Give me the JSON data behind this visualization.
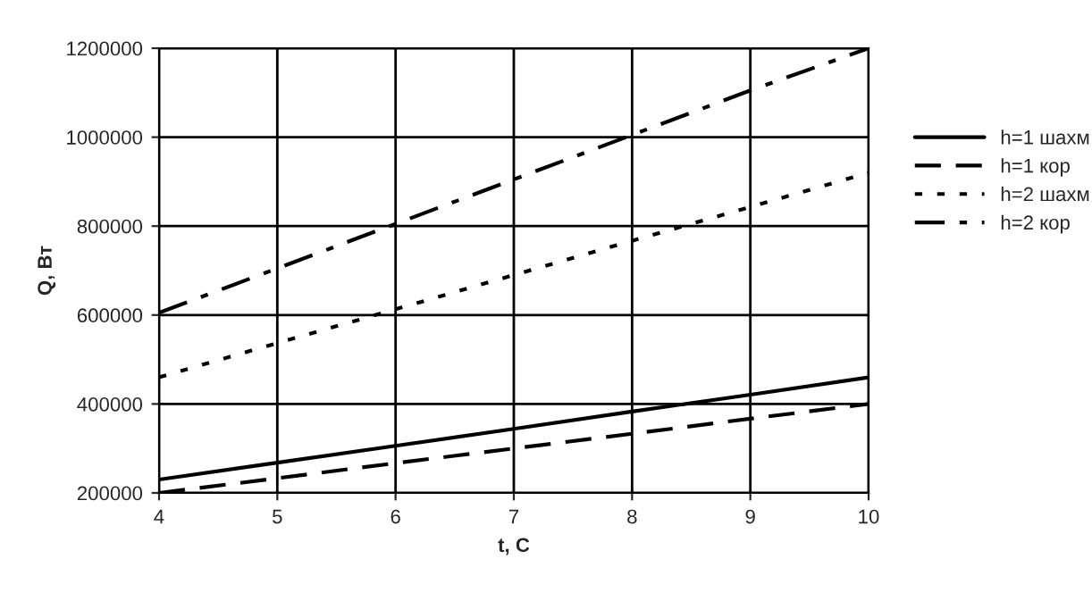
{
  "chart_data": {
    "type": "line",
    "xlabel": "t, C",
    "ylabel": "Q, Вт",
    "x": [
      4,
      5,
      6,
      7,
      8,
      9,
      10
    ],
    "series": [
      {
        "name": "h=1 шахм",
        "color": "#000000",
        "line_style": "solid",
        "values": [
          230000,
          268000,
          306000,
          344000,
          383000,
          421000,
          460000
        ]
      },
      {
        "name": "h=1 кор",
        "color": "#000000",
        "line_style": "dashed",
        "values": [
          200000,
          233000,
          267000,
          300000,
          333000,
          367000,
          400000
        ]
      },
      {
        "name": "h=2 шахм",
        "color": "#000000",
        "line_style": "dotted",
        "values": [
          460000,
          537000,
          613000,
          690000,
          767000,
          843000,
          920000
        ]
      },
      {
        "name": "h=2 кор",
        "color": "#000000",
        "line_style": "dashdot",
        "values": [
          605000,
          705000,
          805000,
          905000,
          1005000,
          1105000,
          1200000
        ]
      }
    ],
    "xlim": [
      4,
      10
    ],
    "xticks": [
      4,
      5,
      6,
      7,
      8,
      9,
      10
    ],
    "ylim": [
      200000,
      1200000
    ],
    "yticks": [
      200000,
      400000,
      600000,
      800000,
      1000000,
      1200000
    ],
    "grid": true,
    "legend": "right",
    "marker": "none"
  }
}
